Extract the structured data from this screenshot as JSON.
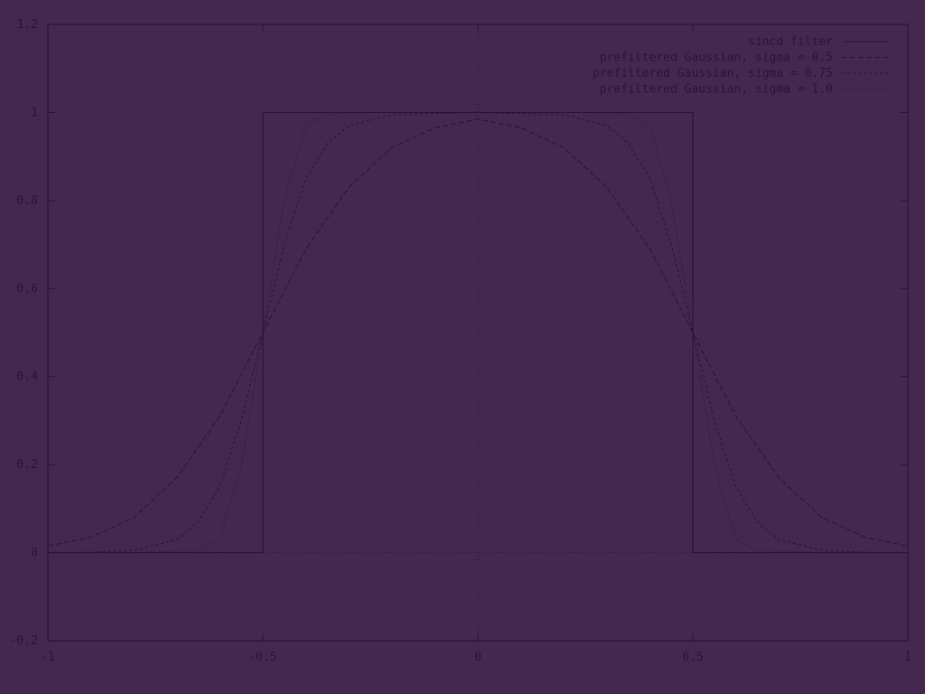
{
  "chart_data": {
    "type": "line",
    "title": "",
    "xlabel": "",
    "ylabel": "",
    "xlim": [
      -1,
      1
    ],
    "ylim": [
      -0.2,
      1.2
    ],
    "xticks": [
      -1,
      -0.5,
      0,
      0.5,
      1
    ],
    "xtick_labels": [
      "-1",
      "-0.5",
      "0",
      "0.5",
      "1"
    ],
    "yticks": [
      -0.2,
      0,
      0.2,
      0.4,
      0.6,
      0.8,
      1,
      1.2
    ],
    "ytick_labels": [
      "-0.2",
      "0",
      "0.2",
      "0.4",
      "0.6",
      "0.8",
      "1",
      "1.2"
    ],
    "grid": false,
    "zero_axes": true,
    "legend_position": "top-right",
    "series": [
      {
        "name": "sincd filter",
        "style": "solid",
        "x": [
          -1,
          -0.5,
          -0.5,
          0.5,
          0.5,
          1
        ],
        "y": [
          0,
          0,
          1,
          1,
          0,
          0
        ]
      },
      {
        "name": "prefiltered Gaussian, sigma = 0.5",
        "style": "dashed",
        "x": [
          -1,
          -0.9,
          -0.8,
          -0.7,
          -0.6,
          -0.5,
          -0.4,
          -0.3,
          -0.2,
          -0.1,
          0,
          0.1,
          0.2,
          0.3,
          0.4,
          0.5,
          0.6,
          0.7,
          0.8,
          0.9,
          1
        ],
        "y": [
          0.015,
          0.035,
          0.08,
          0.17,
          0.31,
          0.5,
          0.69,
          0.83,
          0.92,
          0.965,
          0.985,
          0.965,
          0.92,
          0.83,
          0.69,
          0.5,
          0.31,
          0.17,
          0.08,
          0.035,
          0.015
        ]
      },
      {
        "name": "prefiltered Gaussian, sigma = 0.75",
        "style": "short-dashed",
        "x": [
          -1,
          -0.9,
          -0.8,
          -0.7,
          -0.65,
          -0.6,
          -0.55,
          -0.5,
          -0.45,
          -0.4,
          -0.35,
          -0.3,
          -0.2,
          0,
          0.2,
          0.3,
          0.35,
          0.4,
          0.45,
          0.5,
          0.55,
          0.6,
          0.65,
          0.7,
          0.8,
          0.9,
          1
        ],
        "y": [
          0,
          0.001,
          0.005,
          0.03,
          0.07,
          0.15,
          0.3,
          0.5,
          0.7,
          0.85,
          0.93,
          0.97,
          0.995,
          1,
          0.995,
          0.97,
          0.93,
          0.85,
          0.7,
          0.5,
          0.3,
          0.15,
          0.07,
          0.03,
          0.005,
          0.001,
          0
        ]
      },
      {
        "name": "prefiltered Gaussian, sigma = 1.0",
        "style": "dotted",
        "x": [
          -1,
          -0.8,
          -0.65,
          -0.6,
          -0.55,
          -0.5,
          -0.45,
          -0.4,
          -0.35,
          -0.3,
          0,
          0.3,
          0.35,
          0.4,
          0.45,
          0.5,
          0.55,
          0.6,
          0.65,
          0.8,
          1
        ],
        "y": [
          0,
          0,
          0.005,
          0.03,
          0.2,
          0.5,
          0.8,
          0.97,
          0.995,
          1,
          1,
          1,
          0.995,
          0.97,
          0.8,
          0.5,
          0.2,
          0.03,
          0.005,
          0,
          0
        ]
      }
    ]
  },
  "colors": {
    "background": "#45284f",
    "foreground": "#2a1532"
  }
}
